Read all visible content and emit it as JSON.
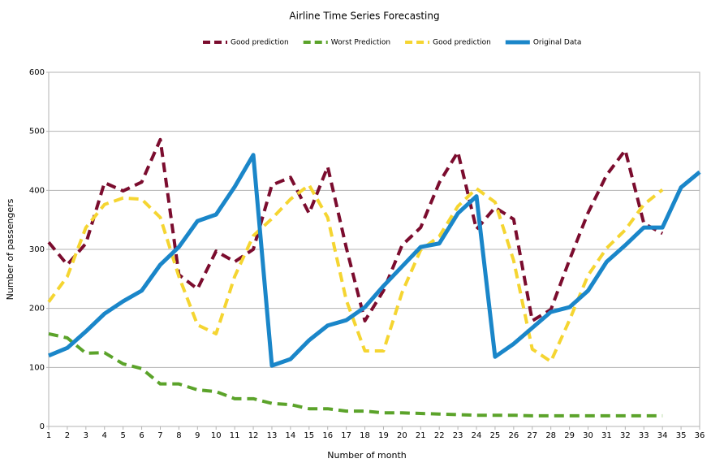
{
  "chart_data": {
    "type": "line",
    "title": "Airline Time Series Forecasting",
    "xlabel": "Number of month",
    "ylabel": "Number of passengers",
    "x": [
      1,
      2,
      3,
      4,
      5,
      6,
      7,
      8,
      9,
      10,
      11,
      12,
      13,
      14,
      15,
      16,
      17,
      18,
      19,
      20,
      21,
      22,
      23,
      24,
      25,
      26,
      27,
      28,
      29,
      30,
      31,
      32,
      33,
      34,
      35,
      36
    ],
    "xlim": [
      1,
      36
    ],
    "xticks": [
      1,
      2,
      3,
      4,
      5,
      6,
      7,
      8,
      9,
      10,
      11,
      12,
      13,
      14,
      15,
      16,
      17,
      18,
      19,
      20,
      21,
      22,
      23,
      24,
      25,
      26,
      27,
      28,
      29,
      30,
      31,
      32,
      33,
      34,
      35,
      36
    ],
    "ylim": [
      0,
      600
    ],
    "yticks": [
      0,
      100,
      200,
      300,
      400,
      500,
      600
    ],
    "grid": true,
    "legend": "top",
    "series": [
      {
        "name": "Good prediction",
        "color": "#7b0c2e",
        "dashed": true,
        "values": [
          312,
          274,
          310,
          413,
          399,
          414,
          486,
          257,
          233,
          297,
          279,
          300,
          409,
          422,
          361,
          440,
          303,
          179,
          230,
          307,
          337,
          413,
          465,
          334,
          371,
          351,
          179,
          198,
          282,
          362,
          426,
          468,
          344,
          327,
          null,
          null
        ]
      },
      {
        "name": "Worst Prediction",
        "color": "#5ba32a",
        "dashed": true,
        "values": [
          157,
          150,
          124,
          125,
          106,
          98,
          72,
          72,
          62,
          59,
          47,
          47,
          39,
          37,
          30,
          30,
          26,
          26,
          23,
          23,
          22,
          21,
          20,
          19,
          19,
          19,
          18,
          18,
          18,
          18,
          18,
          18,
          18,
          18,
          null,
          null
        ]
      },
      {
        "name": "Good prediction",
        "color": "#f5d531",
        "dashed": true,
        "values": [
          211,
          254,
          337,
          376,
          387,
          385,
          354,
          254,
          172,
          157,
          254,
          323,
          352,
          385,
          409,
          354,
          214,
          128,
          128,
          227,
          299,
          322,
          373,
          403,
          380,
          281,
          131,
          110,
          180,
          256,
          302,
          333,
          376,
          401,
          null,
          null
        ]
      },
      {
        "name": "Original Data",
        "color": "#1a86c9",
        "dashed": false,
        "values": [
          120,
          133,
          161,
          191,
          212,
          230,
          274,
          304,
          348,
          359,
          406,
          460,
          103,
          114,
          146,
          171,
          180,
          202,
          238,
          271,
          304,
          310,
          361,
          390,
          118,
          140,
          167,
          194,
          202,
          230,
          279,
          307,
          337,
          337,
          405,
          431
        ]
      }
    ]
  }
}
